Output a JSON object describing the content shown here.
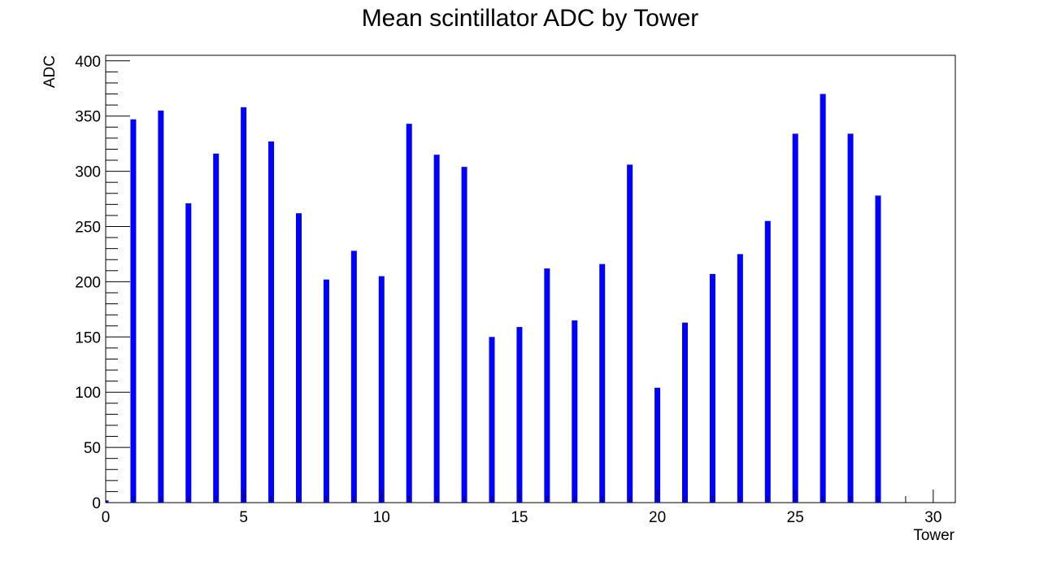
{
  "chart_data": {
    "type": "bar",
    "title": "Mean scintillator ADC by Tower",
    "xlabel": "Tower",
    "ylabel": "ADC",
    "xlim": [
      0,
      30.8
    ],
    "ylim": [
      0,
      405
    ],
    "x_ticks": [
      0,
      5,
      10,
      15,
      20,
      25,
      30
    ],
    "y_ticks": [
      0,
      50,
      100,
      150,
      200,
      250,
      300,
      350,
      400
    ],
    "grid": false,
    "legend": "none",
    "bar_color": "#0000ff",
    "x": [
      0,
      1,
      2,
      3,
      4,
      5,
      6,
      7,
      8,
      9,
      10,
      11,
      12,
      13,
      14,
      15,
      16,
      17,
      18,
      19,
      20,
      21,
      22,
      23,
      24,
      25,
      26,
      27,
      28,
      29,
      30
    ],
    "values": [
      2,
      347,
      355,
      271,
      316,
      358,
      327,
      262,
      202,
      228,
      205,
      343,
      315,
      304,
      150,
      159,
      212,
      165,
      216,
      306,
      104,
      163,
      207,
      225,
      255,
      334,
      370,
      334,
      278,
      0,
      0
    ]
  }
}
